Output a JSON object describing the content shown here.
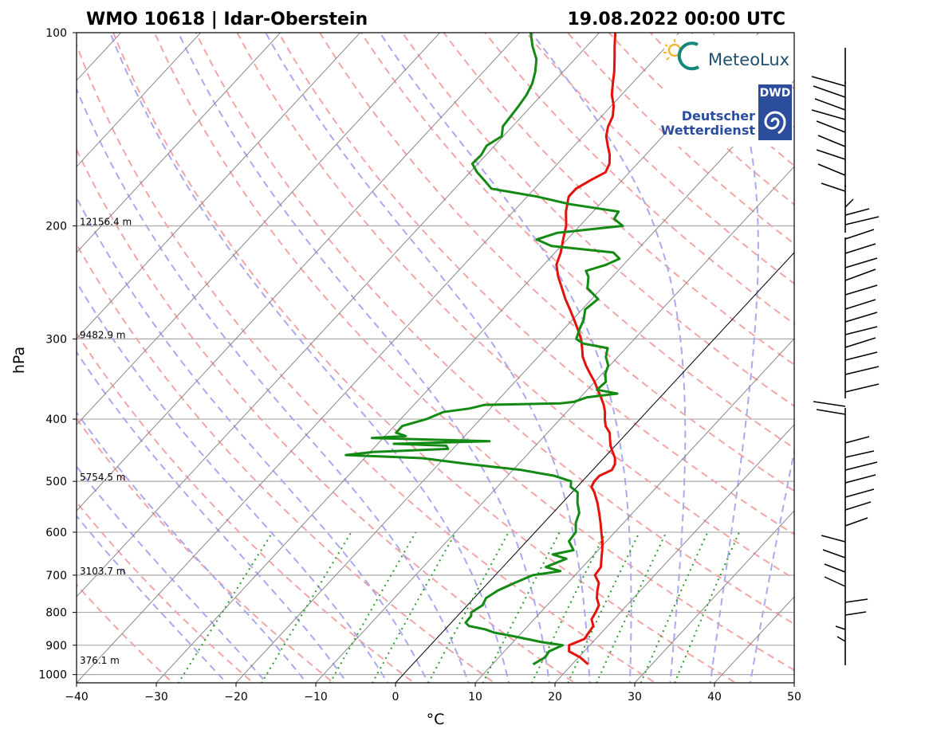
{
  "chart_data": {
    "type": "line",
    "subtype": "skew-T log-p sounding",
    "title_left": "WMO 10618 | Idar-Oberstein",
    "title_right": "19.08.2022 00:00 UTC",
    "xlabel": "°C",
    "ylabel": "hPa",
    "xlim": [
      -40,
      50
    ],
    "ylim": [
      1030,
      100
    ],
    "x_ticks": [
      "−40",
      "−30",
      "−20",
      "−10",
      "0",
      "10",
      "20",
      "30",
      "40",
      "50"
    ],
    "y_ticks": [
      "100",
      "200",
      "300",
      "400",
      "500",
      "600",
      "700",
      "800",
      "900",
      "1000"
    ],
    "y_scale": "log",
    "grid": true,
    "height_labels": [
      {
        "p": 200,
        "text": "12156.4 m"
      },
      {
        "p": 300,
        "text": "9482.9 m"
      },
      {
        "p": 500,
        "text": "5754.5 m"
      },
      {
        "p": 700,
        "text": "3103.7 m"
      },
      {
        "p": 965,
        "text": "376.1 m"
      }
    ],
    "temperature": {
      "color": "#e3120b",
      "points": [
        [
          964,
          22.0
        ],
        [
          940,
          20.2
        ],
        [
          920,
          18.1
        ],
        [
          900,
          17.4
        ],
        [
          880,
          18.6
        ],
        [
          860,
          18.4
        ],
        [
          840,
          18.2
        ],
        [
          820,
          17.2
        ],
        [
          800,
          16.9
        ],
        [
          780,
          16.5
        ],
        [
          760,
          15.4
        ],
        [
          740,
          14.6
        ],
        [
          720,
          13.9
        ],
        [
          700,
          12.5
        ],
        [
          680,
          12.3
        ],
        [
          660,
          11.4
        ],
        [
          640,
          10.5
        ],
        [
          620,
          9.5
        ],
        [
          600,
          8.3
        ],
        [
          580,
          7.1
        ],
        [
          560,
          5.8
        ],
        [
          540,
          4.4
        ],
        [
          520,
          2.8
        ],
        [
          510,
          1.8
        ],
        [
          500,
          1.5
        ],
        [
          490,
          1.5
        ],
        [
          480,
          2.4
        ],
        [
          470,
          2.1
        ],
        [
          460,
          1.4
        ],
        [
          450,
          0.4
        ],
        [
          440,
          -0.6
        ],
        [
          430,
          -1.4
        ],
        [
          420,
          -2.2
        ],
        [
          410,
          -3.5
        ],
        [
          400,
          -4.4
        ],
        [
          390,
          -5.2
        ],
        [
          380,
          -6.2
        ],
        [
          370,
          -7.4
        ],
        [
          360,
          -8.7
        ],
        [
          350,
          -10.0
        ],
        [
          340,
          -11.5
        ],
        [
          330,
          -13.0
        ],
        [
          320,
          -14.4
        ],
        [
          310,
          -15.5
        ],
        [
          300,
          -16.7
        ],
        [
          290,
          -18.2
        ],
        [
          280,
          -19.8
        ],
        [
          270,
          -21.5
        ],
        [
          260,
          -23.3
        ],
        [
          250,
          -25.0
        ],
        [
          240,
          -26.8
        ],
        [
          230,
          -28.4
        ],
        [
          220,
          -29.3
        ],
        [
          210,
          -30.5
        ],
        [
          200,
          -31.7
        ],
        [
          190,
          -33.4
        ],
        [
          180,
          -34.8
        ],
        [
          175,
          -34.8
        ],
        [
          170,
          -34.0
        ],
        [
          165,
          -33.0
        ],
        [
          160,
          -33.5
        ],
        [
          155,
          -34.5
        ],
        [
          150,
          -35.8
        ],
        [
          145,
          -37.1
        ],
        [
          140,
          -38.0
        ],
        [
          135,
          -38.6
        ],
        [
          130,
          -39.7
        ],
        [
          125,
          -41.2
        ],
        [
          120,
          -42.4
        ],
        [
          115,
          -43.6
        ],
        [
          110,
          -45.0
        ],
        [
          105,
          -46.5
        ],
        [
          100,
          -48.0
        ]
      ]
    },
    "dewpoint": {
      "color": "#138a13",
      "points": [
        [
          964,
          15.1
        ],
        [
          940,
          15.8
        ],
        [
          920,
          15.6
        ],
        [
          900,
          16.6
        ],
        [
          890,
          13.6
        ],
        [
          880,
          11.3
        ],
        [
          870,
          9.0
        ],
        [
          860,
          6.5
        ],
        [
          850,
          5.0
        ],
        [
          840,
          2.6
        ],
        [
          830,
          1.8
        ],
        [
          810,
          1.7
        ],
        [
          800,
          1.3
        ],
        [
          780,
          1.9
        ],
        [
          760,
          1.5
        ],
        [
          740,
          2.1
        ],
        [
          720,
          3.3
        ],
        [
          700,
          4.7
        ],
        [
          690,
          7.7
        ],
        [
          680,
          5.4
        ],
        [
          660,
          7.0
        ],
        [
          650,
          4.8
        ],
        [
          640,
          6.9
        ],
        [
          620,
          5.3
        ],
        [
          600,
          5.1
        ],
        [
          580,
          4.0
        ],
        [
          560,
          3.3
        ],
        [
          540,
          1.9
        ],
        [
          520,
          0.7
        ],
        [
          510,
          -0.8
        ],
        [
          500,
          -1.4
        ],
        [
          490,
          -4.2
        ],
        [
          480,
          -9.0
        ],
        [
          470,
          -16.2
        ],
        [
          460,
          -22.8
        ],
        [
          455,
          -32.7
        ],
        [
          450,
          -29.6
        ],
        [
          445,
          -20.6
        ],
        [
          440,
          -21.2
        ],
        [
          437,
          -28.0
        ],
        [
          433,
          -16.3
        ],
        [
          428,
          -31.4
        ],
        [
          425,
          -27.4
        ],
        [
          420,
          -29.0
        ],
        [
          410,
          -29.0
        ],
        [
          400,
          -26.8
        ],
        [
          390,
          -25.5
        ],
        [
          385,
          -22.6
        ],
        [
          380,
          -21.1
        ],
        [
          378,
          -11.8
        ],
        [
          376,
          -10.3
        ],
        [
          370,
          -9.2
        ],
        [
          365,
          -5.8
        ],
        [
          360,
          -8.8
        ],
        [
          350,
          -8.6
        ],
        [
          340,
          -9.6
        ],
        [
          330,
          -10.2
        ],
        [
          320,
          -11.5
        ],
        [
          310,
          -12.3
        ],
        [
          305,
          -15.9
        ],
        [
          300,
          -17.3
        ],
        [
          290,
          -18.0
        ],
        [
          280,
          -18.6
        ],
        [
          270,
          -19.6
        ],
        [
          260,
          -19.2
        ],
        [
          250,
          -21.8
        ],
        [
          240,
          -23.0
        ],
        [
          235,
          -24.0
        ],
        [
          230,
          -22.2
        ],
        [
          225,
          -21.2
        ],
        [
          220,
          -22.7
        ],
        [
          215,
          -31.2
        ],
        [
          210,
          -33.8
        ],
        [
          205,
          -32.0
        ],
        [
          200,
          -24.6
        ],
        [
          195,
          -26.5
        ],
        [
          190,
          -26.8
        ],
        [
          185,
          -33.8
        ],
        [
          180,
          -38.8
        ],
        [
          175,
          -45.4
        ],
        [
          170,
          -47.2
        ],
        [
          165,
          -49.1
        ],
        [
          160,
          -50.7
        ],
        [
          155,
          -50.6
        ],
        [
          150,
          -51.0
        ],
        [
          145,
          -50.2
        ],
        [
          140,
          -51.2
        ],
        [
          130,
          -51.6
        ],
        [
          125,
          -51.9
        ],
        [
          120,
          -52.5
        ],
        [
          115,
          -53.5
        ],
        [
          110,
          -54.8
        ],
        [
          105,
          -56.8
        ],
        [
          100,
          -58.6
        ]
      ]
    }
  },
  "logos": {
    "meteolux": "MeteoLux",
    "dwd_box": "DWD",
    "dwd_line1": "Deutscher",
    "dwd_line2": "Wetterdienst"
  },
  "colors": {
    "dry_adiabat": "#f3a5a5",
    "moist_adiabat": "#a9a9ef",
    "mixing_ratio": "#2c9a2c",
    "isotherm": "#888888",
    "isobar": "#aaaaaa"
  }
}
